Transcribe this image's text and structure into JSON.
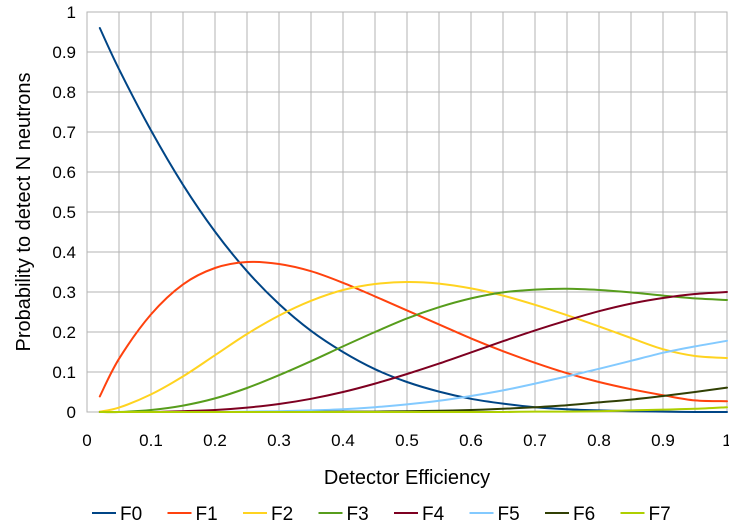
{
  "chart_data": {
    "type": "line",
    "title": "",
    "xlabel": "Detector Efficiency",
    "ylabel": "Probability to detect N neutrons",
    "xlim": [
      0,
      1
    ],
    "ylim": [
      0,
      1
    ],
    "x_ticks": [
      "0",
      "0.1",
      "0.2",
      "0.3",
      "0.4",
      "0.5",
      "0.6",
      "0.7",
      "0.8",
      "0.9",
      "1"
    ],
    "y_ticks": [
      "0",
      "0.1",
      "0.2",
      "0.3",
      "0.4",
      "0.5",
      "0.6",
      "0.7",
      "0.8",
      "0.9",
      "1"
    ],
    "grid": true,
    "legend_position": "bottom",
    "x": [
      0.02,
      0.05,
      0.1,
      0.15,
      0.2,
      0.25,
      0.3,
      0.35,
      0.4,
      0.45,
      0.5,
      0.55,
      0.6,
      0.65,
      0.7,
      0.75,
      0.8,
      0.85,
      0.9,
      0.95,
      1.0
    ],
    "series": [
      {
        "name": "F0",
        "color": "#004586",
        "values": [
          0.96,
          0.857,
          0.704,
          0.568,
          0.451,
          0.352,
          0.27,
          0.203,
          0.15,
          0.107,
          0.075,
          0.051,
          0.033,
          0.021,
          0.012,
          0.007,
          0.004,
          0.002,
          0.001,
          0.0,
          0.0
        ]
      },
      {
        "name": "F1",
        "color": "#ff420e",
        "values": [
          0.039,
          0.133,
          0.244,
          0.319,
          0.36,
          0.375,
          0.37,
          0.352,
          0.323,
          0.289,
          0.254,
          0.219,
          0.184,
          0.152,
          0.123,
          0.097,
          0.075,
          0.057,
          0.042,
          0.029,
          0.027
        ]
      },
      {
        "name": "F2",
        "color": "#ffd320",
        "values": [
          0.001,
          0.011,
          0.044,
          0.089,
          0.142,
          0.195,
          0.241,
          0.278,
          0.305,
          0.32,
          0.325,
          0.321,
          0.309,
          0.291,
          0.268,
          0.242,
          0.214,
          0.185,
          0.157,
          0.14,
          0.135
        ]
      },
      {
        "name": "F3",
        "color": "#579d1c",
        "values": [
          0.0,
          0.0,
          0.005,
          0.016,
          0.034,
          0.06,
          0.092,
          0.127,
          0.164,
          0.2,
          0.234,
          0.262,
          0.284,
          0.299,
          0.306,
          0.308,
          0.305,
          0.299,
          0.291,
          0.284,
          0.28
        ]
      },
      {
        "name": "F4",
        "color": "#7e0021",
        "values": [
          0.0,
          0.0,
          0.0,
          0.002,
          0.005,
          0.011,
          0.02,
          0.033,
          0.05,
          0.071,
          0.095,
          0.121,
          0.149,
          0.177,
          0.204,
          0.229,
          0.252,
          0.271,
          0.285,
          0.295,
          0.3
        ]
      },
      {
        "name": "F5",
        "color": "#83caff",
        "values": [
          0.0,
          0.0,
          0.0,
          0.0,
          0.0,
          0.001,
          0.002,
          0.004,
          0.007,
          0.012,
          0.019,
          0.028,
          0.04,
          0.054,
          0.071,
          0.089,
          0.108,
          0.128,
          0.148,
          0.164,
          0.178
        ]
      },
      {
        "name": "F6",
        "color": "#314004",
        "values": [
          0.0,
          0.0,
          0.0,
          0.0,
          0.0,
          0.0,
          0.0,
          0.0,
          0.001,
          0.001,
          0.002,
          0.003,
          0.005,
          0.008,
          0.012,
          0.017,
          0.024,
          0.031,
          0.04,
          0.05,
          0.061
        ]
      },
      {
        "name": "F7",
        "color": "#aecf00",
        "values": [
          0.0,
          0.0,
          0.0,
          0.0,
          0.0,
          0.0,
          0.0,
          0.0,
          0.0,
          0.0,
          0.0,
          0.0,
          0.0,
          0.0,
          0.001,
          0.001,
          0.002,
          0.004,
          0.006,
          0.008,
          0.012
        ]
      }
    ]
  }
}
